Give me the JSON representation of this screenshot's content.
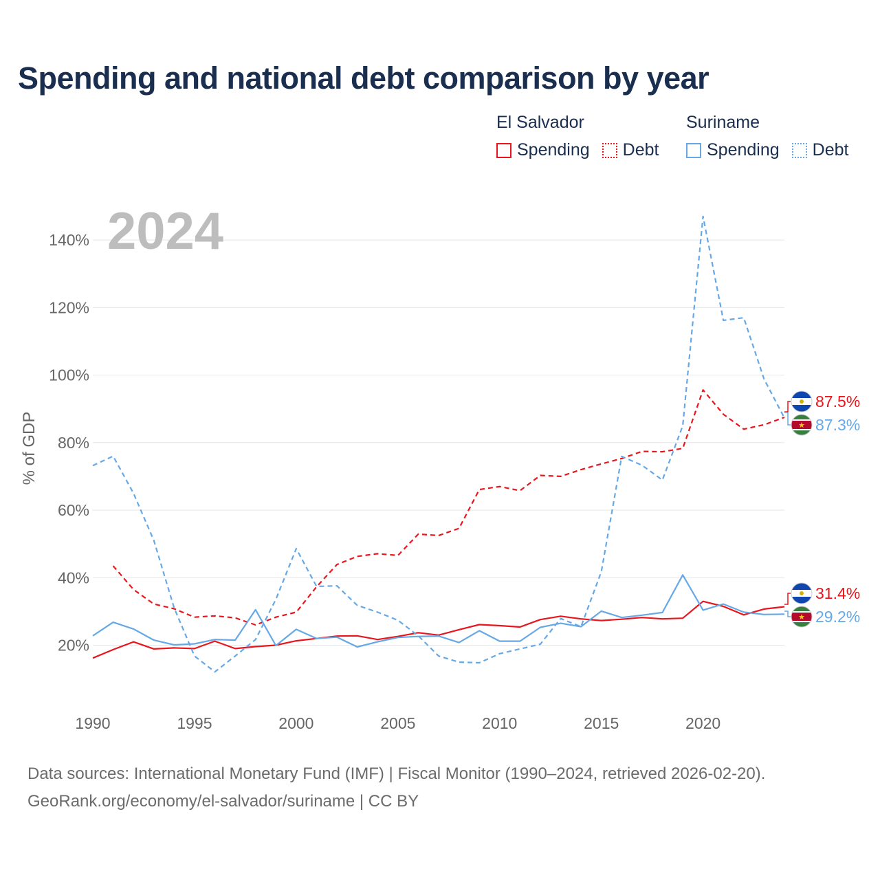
{
  "title": "Spending and national debt comparison by year",
  "legend": {
    "groups": [
      {
        "name": "El Salvador",
        "items": [
          "Spending",
          "Debt"
        ]
      },
      {
        "name": "Suriname",
        "items": [
          "Spending",
          "Debt"
        ]
      }
    ]
  },
  "colors": {
    "el_salvador": "#e8161c",
    "suriname": "#66a8e6",
    "grid": "#e6e6e6",
    "axis_text": "#666666",
    "year_watermark": "#bdbdbd"
  },
  "year_watermark": "2024",
  "end_labels": {
    "debt_el_salvador": "87.5%",
    "debt_suriname": "87.3%",
    "spending_el_salvador": "31.4%",
    "spending_suriname": "29.2%"
  },
  "source": {
    "line1": "Data sources: International Monetary Fund (IMF) | Fiscal Monitor (1990–2024, retrieved 2026-02-20).",
    "line2": "GeoRank.org/economy/el-salvador/suriname | CC BY"
  },
  "chart_data": {
    "type": "line",
    "title": "Spending and national debt comparison by year",
    "xlabel": "",
    "ylabel": "% of GDP",
    "xlim": [
      1990,
      2024
    ],
    "ylim": [
      3,
      150
    ],
    "x_ticks": [
      1990,
      1995,
      2000,
      2005,
      2010,
      2015,
      2020
    ],
    "y_ticks": [
      20,
      40,
      60,
      80,
      100,
      120,
      140
    ],
    "y_tick_labels": [
      "20%",
      "40%",
      "60%",
      "80%",
      "100%",
      "120%",
      "140%"
    ],
    "grid": true,
    "legend_position": "top-right",
    "series": [
      {
        "name": "El Salvador Spending",
        "style": "solid",
        "color": "#e8161c",
        "x": [
          1990,
          1991,
          1992,
          1993,
          1994,
          1995,
          1996,
          1997,
          1998,
          1999,
          2000,
          2001,
          2002,
          2003,
          2004,
          2005,
          2006,
          2007,
          2008,
          2009,
          2010,
          2011,
          2012,
          2013,
          2014,
          2015,
          2016,
          2017,
          2018,
          2019,
          2020,
          2021,
          2022,
          2023,
          2024
        ],
        "values": [
          16.2,
          18.7,
          21.0,
          18.9,
          19.2,
          19.0,
          21.2,
          19.0,
          19.6,
          20.0,
          21.3,
          22.0,
          22.7,
          22.8,
          21.7,
          22.6,
          23.7,
          23.0,
          24.6,
          26.1,
          25.8,
          25.4,
          27.6,
          28.6,
          27.8,
          27.3,
          27.7,
          28.2,
          27.8,
          28.0,
          33.0,
          31.5,
          29.0,
          30.7,
          31.4
        ]
      },
      {
        "name": "El Salvador Debt",
        "style": "dashed",
        "color": "#e8161c",
        "x": [
          1991,
          1992,
          1993,
          1994,
          1995,
          1996,
          1997,
          1998,
          1999,
          2000,
          2001,
          2002,
          2003,
          2004,
          2005,
          2006,
          2007,
          2008,
          2009,
          2010,
          2011,
          2012,
          2013,
          2014,
          2015,
          2016,
          2017,
          2018,
          2019,
          2020,
          2021,
          2022,
          2023,
          2024
        ],
        "values": [
          43.5,
          36.5,
          32.2,
          30.8,
          28.3,
          28.7,
          28.1,
          26.0,
          28.3,
          29.8,
          37.3,
          43.9,
          46.3,
          47.1,
          46.6,
          52.9,
          52.5,
          54.6,
          66.1,
          67.0,
          65.8,
          70.3,
          70.0,
          72.0,
          73.7,
          75.3,
          77.4,
          77.3,
          78.3,
          95.6,
          88.4,
          84.0,
          85.3,
          87.5
        ]
      },
      {
        "name": "Suriname Spending",
        "style": "solid",
        "color": "#66a8e6",
        "x": [
          1990,
          1991,
          1992,
          1993,
          1994,
          1995,
          1996,
          1997,
          1998,
          1999,
          2000,
          2001,
          2002,
          2003,
          2004,
          2005,
          2006,
          2007,
          2008,
          2009,
          2010,
          2011,
          2012,
          2013,
          2014,
          2015,
          2016,
          2017,
          2018,
          2019,
          2020,
          2021,
          2022,
          2023,
          2024
        ],
        "values": [
          22.8,
          26.8,
          24.8,
          21.5,
          20.1,
          20.4,
          21.7,
          21.5,
          30.5,
          19.9,
          24.7,
          22.0,
          22.4,
          19.5,
          21.0,
          22.3,
          22.6,
          22.7,
          20.8,
          24.3,
          21.2,
          21.2,
          25.3,
          26.5,
          25.5,
          30.1,
          28.2,
          28.9,
          29.7,
          40.8,
          30.4,
          32.2,
          29.8,
          29.1,
          29.2
        ]
      },
      {
        "name": "Suriname Debt",
        "style": "dashed",
        "color": "#66a8e6",
        "x": [
          1990,
          1991,
          1992,
          1993,
          1994,
          1995,
          1996,
          1997,
          1998,
          1999,
          2000,
          2001,
          2002,
          2003,
          2004,
          2005,
          2006,
          2007,
          2008,
          2009,
          2010,
          2011,
          2012,
          2013,
          2014,
          2015,
          2016,
          2017,
          2018,
          2019,
          2020,
          2021,
          2022,
          2023,
          2024
        ],
        "values": [
          73.2,
          76.0,
          65.0,
          51.0,
          31.0,
          16.8,
          12.1,
          16.8,
          21.7,
          33.6,
          48.6,
          37.4,
          37.6,
          31.8,
          29.8,
          27.4,
          22.8,
          16.8,
          15.0,
          14.8,
          17.5,
          18.9,
          20.3,
          27.9,
          25.5,
          41.8,
          75.9,
          73.3,
          68.9,
          85.0,
          147.0,
          116.2,
          117.0,
          98.8,
          87.3
        ]
      }
    ]
  }
}
